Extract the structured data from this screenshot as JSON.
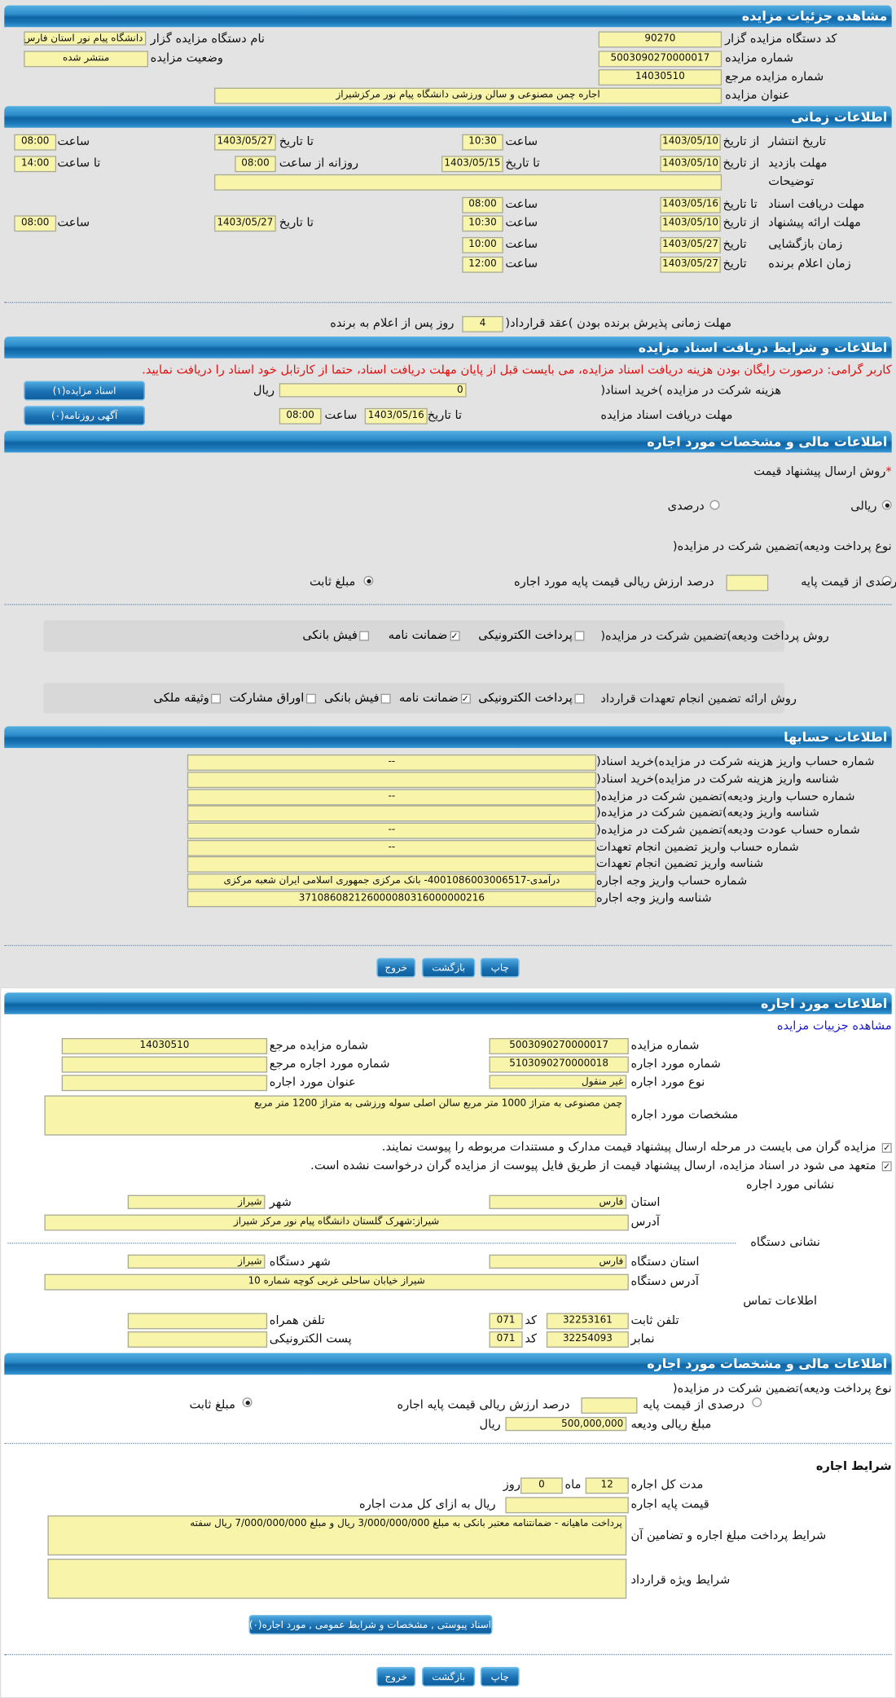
{
  "s1": {
    "title": "مشاهده جزئیات مزایده",
    "code_label": "کد دستگاه مزایده گزار",
    "code": "90270",
    "num_label": "شماره مزایده",
    "num": "5003090270000017",
    "ref_label": "شماره مزایده مرجع",
    "ref": "14030510",
    "subject_label": "عنوان مزایده",
    "subject": "اجاره چمن مصنوعی و سالن ورزشی دانشگاه پیام نور مرکزشیراز",
    "org_label": "نام دستگاه مزایده گزار",
    "org": "دانشگاه پیام نور استان فارس",
    "status_label": "وضعیت مزایده",
    "status": "منتشر شده"
  },
  "s2": {
    "title": "اطلاعات زمانی",
    "from_date": "از تاریخ",
    "to_date": "تا تاریخ",
    "date": "تاریخ",
    "hour": "ساعت",
    "to_hour": "تا ساعت",
    "daily_from": "روزانه از ساعت",
    "publish_label": "تاریخ انتشار",
    "publish_from": "1403/05/10",
    "publish_from_time": "10:30",
    "publish_to": "1403/05/27",
    "publish_to_time": "08:00",
    "visit_label": "مهلت بازدید",
    "visit_from": "1403/05/10",
    "visit_to": "1403/05/15",
    "visit_daily_from": "08:00",
    "visit_daily_to": "14:00",
    "desc_label": "توضیحات",
    "desc": "",
    "docs_label": "مهلت دریافت اسناد",
    "docs_to": "1403/05/16",
    "docs_time": "08:00",
    "offer_label": "مهلت ارائه پیشنهاد",
    "offer_from": "1403/05/10",
    "offer_from_time": "10:30",
    "offer_to": "1403/05/27",
    "offer_to_time": "08:00",
    "open_label": "زمان بازگشایی",
    "open_date": "1403/05/27",
    "open_time": "10:00",
    "winner_label": "زمان اعلام برنده",
    "winner_date": "1403/05/27",
    "winner_time": "12:00",
    "accept_label": "مهلت زمانی پذیرش برنده بودن )عقد قرارداد(",
    "accept_days": "4",
    "accept_suffix": "روز پس از اعلام به برنده"
  },
  "s3": {
    "title": "اطلاعات و شرایط دریافت اسناد مزایده",
    "notice": "کاربر گرامی: درصورت رایگان بودن هزینه دریافت اسناد مزایده، می بایست قبل از پایان مهلت دریافت اسناد، حتما از کارتابل خود اسناد را دریافت نمایید.",
    "fee_label": "هزینه شرکت در مزایده )خرید اسناد(",
    "fee": "0",
    "rial": "ریال",
    "deadline_label": "مهلت دریافت اسناد مزایده",
    "to_date": "تا تاریخ",
    "deadline_date": "1403/05/16",
    "hour": "ساعت",
    "deadline_time": "08:00",
    "docs_button": "اسناد مزایده(۱)",
    "ads_button": "آگهی روزنامه(۰)"
  },
  "s4": {
    "title": "اطلاعات مالی و مشخصات مورد اجاره",
    "method_label": "روش ارسال پیشنهاد قیمت",
    "required": "*",
    "rial_opt": "ریالی",
    "percent_opt": "درصدی",
    "deposit_type_label": "نوع پرداخت ودیعه)تضمین شرکت در مزایده(",
    "pct_base": "درصدی از قیمت پایه",
    "pct_value": "",
    "pct_text": "درصد ارزش ریالی قیمت پایه مورد اجاره",
    "fixed": "مبلغ ثابت",
    "deposit_method_label": "روش پرداخت ودیعه)تضمین شرکت در مزایده(",
    "deposit_methods": [
      {
        "label": "پرداخت الکترونیکی",
        "checked": false
      },
      {
        "label": "ضمانت نامه",
        "checked": true
      },
      {
        "label": "فیش بانکی",
        "checked": false
      }
    ],
    "guarantee_label": "روش ارائه تضمین انجام تعهدات قرارداد",
    "guarantee_methods": [
      {
        "label": "پرداخت الکترونیکی",
        "checked": false
      },
      {
        "label": "ضمانت نامه",
        "checked": true
      },
      {
        "label": "فیش بانکی",
        "checked": false
      },
      {
        "label": "اوراق مشارکت",
        "checked": false
      },
      {
        "label": "وثیقه ملکی",
        "checked": false
      }
    ]
  },
  "s5": {
    "title": "اطلاعات حسابها",
    "rows": [
      {
        "label": "شماره حساب واریز هزینه شرکت در مزایده)خرید اسناد(",
        "value": "--"
      },
      {
        "label": "شناسه واریز هزینه شرکت در مزایده)خرید اسناد(",
        "value": ""
      },
      {
        "label": "شماره حساب واریز ودیعه)تضمین شرکت در مزایده(",
        "value": "--"
      },
      {
        "label": "شناسه واریز ودیعه)تضمین شرکت در مزایده(",
        "value": ""
      },
      {
        "label": "شماره حساب عودت ودیعه)تضمین شرکت در مزایده(",
        "value": "--"
      },
      {
        "label": "شماره حساب واریز تضمین انجام تعهدات",
        "value": "--"
      },
      {
        "label": "شناسه واریز تضمین انجام تعهدات",
        "value": ""
      },
      {
        "label": "شماره حساب واریز وجه اجاره",
        "value": "درآمدی-4001086003006517- بانک مرکزی جمهوری اسلامی ایران شعبه مرکزی"
      },
      {
        "label": "شناسه واریز وجه اجاره",
        "value": "371086082126000080316000000216"
      }
    ]
  },
  "actions": {
    "print": "چاپ",
    "back": "بازگشت",
    "exit": "خروج"
  },
  "s6": {
    "title": "اطلاعات مورد اجاره",
    "link": "مشاهده جزییات مزایده",
    "num_label": "شماره مزایده",
    "num": "5003090270000017",
    "ref_label": "شماره مزایده مرجع",
    "ref": "14030510",
    "item_label": "شماره مورد اجاره",
    "item": "5103090270000018",
    "item_ref_label": "شماره مورد اجاره مرجع",
    "item_ref": "",
    "type_label": "نوع مورد اجاره",
    "type": "غیر منقول",
    "item_title_label": "عنوان مورد اجاره",
    "item_title": "",
    "spec_label": "مشخصات مورد اجاره",
    "spec": "چمن مصنوعی به متراژ  1000 متر مربع سالن اصلی سوله ورزشی به متراژ  1200 متر مربع",
    "check1": "مزایده گران می بایست در مرحله ارسال پیشنهاد قیمت مدارک و مستندات مربوطه را پیوست نمایند.",
    "check2": "متعهد می شود در اسناد مزایده، ارسال پیشنهاد قیمت از طریق فایل پیوست از مزایده گران درخواست نشده است.",
    "addr_title": "نشانی مورد اجاره",
    "province_label": "استان",
    "province": "فارس",
    "city_label": "شهر",
    "city": "شیراز",
    "address_label": "آدرس",
    "address": "شیراز:شهرک گلستان دانشگاه پیام نور مرکز شیراز",
    "org_addr_title": "نشانی دستگاه",
    "org_province_label": "استان دستگاه",
    "org_province": "فارس",
    "org_city_label": "شهر دستگاه",
    "org_city": "شیراز",
    "org_address_label": "آدرس دستگاه",
    "org_address": "شیراز خیابان ساحلی غربی کوچه شماره 10",
    "contact_title": "اطلاعات تماس",
    "phone_label": "تلفن ثابت",
    "phone": "32253161",
    "code_label": "کد",
    "phone_code": "071",
    "mobile_label": "تلفن همراه",
    "mobile": "",
    "fax_label": "نمابر",
    "fax": "32254093",
    "fax_code": "071",
    "email_label": "پست الکترونیکی",
    "email": ""
  },
  "s7": {
    "title": "اطلاعات مالی و مشخصات مورد اجاره",
    "deposit_type_label": "نوع پرداخت ودیعه)تضمین شرکت در مزایده(",
    "pct_base": "درصدی از قیمت پایه",
    "pct_value": "",
    "pct_text": "درصد ارزش ریالی قیمت پایه اجاره",
    "fixed": "مبلغ ثابت",
    "deposit_label": "مبلغ ریالی ودیعه",
    "deposit": "500,000,000",
    "rial": "ریال",
    "terms_title": "شرایط اجاره",
    "duration_label": "مدت کل اجاره",
    "months": "12",
    "month": "ماه",
    "days": "0",
    "day": "روز",
    "base_label": "قیمت پایه اجاره",
    "base": "",
    "base_suffix": "ریال به ازای کل مدت اجاره",
    "pay_label": "شرایط پرداخت مبلغ اجاره و تضامین آن",
    "pay": "پرداخت ماهیانه - ضمانتنامه معتبر بانکی به مبلغ 3/000/000/000 ریال و مبلغ 7/000/000/000 ریال سفته",
    "special_label": "شرایط ویژه قرارداد",
    "special": "",
    "attach_button": "اسناد پیوستی , مشخصات و شرایط عمومی , مورد اجاره(۰)"
  }
}
